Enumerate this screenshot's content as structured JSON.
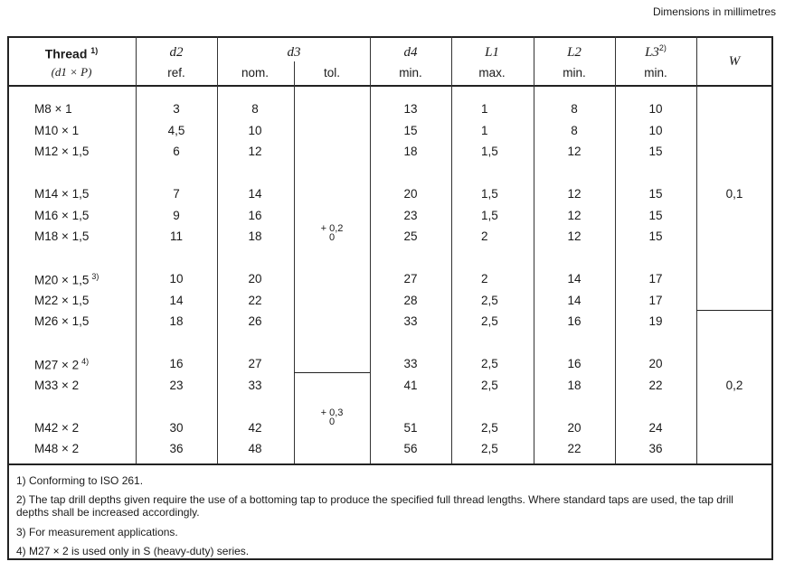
{
  "units_note": "Dimensions in millimetres",
  "header": {
    "thread": "Thread",
    "thread_sup": "1)",
    "thread_sub": "(d1 × P)",
    "d2": "d2",
    "d2_sub": "ref.",
    "d3": "d3",
    "d3_nom": "nom.",
    "d3_tol": "tol.",
    "d4": "d4",
    "d4_sub": "min.",
    "L1": "L1",
    "L1_sub": "max.",
    "L2": "L2",
    "L2_sub": "min.",
    "L3": "L3",
    "L3_sup": "2)",
    "L3_sub": "min.",
    "W": "W"
  },
  "groups": [
    [
      [
        "M8 × 1",
        "",
        "3",
        "8",
        "13",
        "1",
        "8",
        "10"
      ],
      [
        "M10 × 1",
        "",
        "4,5",
        "10",
        "15",
        "1",
        "8",
        "10"
      ],
      [
        "M12 × 1,5",
        "",
        "6",
        "12",
        "18",
        "1,5",
        "12",
        "15"
      ]
    ],
    [
      [
        "M14 × 1,5",
        "",
        "7",
        "14",
        "20",
        "1,5",
        "12",
        "15"
      ],
      [
        "M16 × 1,5",
        "",
        "9",
        "16",
        "23",
        "1,5",
        "12",
        "15"
      ],
      [
        "M18 × 1,5",
        "",
        "11",
        "18",
        "25",
        "2",
        "12",
        "15"
      ]
    ],
    [
      [
        "M20 × 1,5",
        "3)",
        "10",
        "20",
        "27",
        "2",
        "14",
        "17"
      ],
      [
        "M22 × 1,5",
        "",
        "14",
        "22",
        "28",
        "2,5",
        "14",
        "17"
      ],
      [
        "M26 × 1,5",
        "",
        "18",
        "26",
        "33",
        "2,5",
        "16",
        "19"
      ]
    ],
    [
      [
        "M27 × 2",
        "4)",
        "16",
        "27",
        "33",
        "2,5",
        "16",
        "20"
      ],
      [
        "M33 × 2",
        "",
        "23",
        "33",
        "41",
        "2,5",
        "18",
        "22"
      ]
    ],
    [
      [
        "M42 × 2",
        "",
        "30",
        "42",
        "51",
        "2,5",
        "20",
        "24"
      ],
      [
        "M48 × 2",
        "",
        "36",
        "48",
        "56",
        "2,5",
        "22",
        "36"
      ]
    ]
  ],
  "tolerances": [
    {
      "upper": "+ 0,2",
      "lower": "0"
    },
    {
      "upper": "+ 0,3",
      "lower": "0"
    }
  ],
  "w_values": [
    "0,1",
    "0,2"
  ],
  "footnotes": [
    "1)  Conforming to ISO 261.",
    "2)  The tap drill depths given require the use of a bottoming tap to produce the specified full thread lengths. Where standard taps are used, the tap drill depths shall be increased accordingly.",
    "3)  For measurement applications.",
    "4)  M27 × 2 is used only in S (heavy-duty) series."
  ]
}
